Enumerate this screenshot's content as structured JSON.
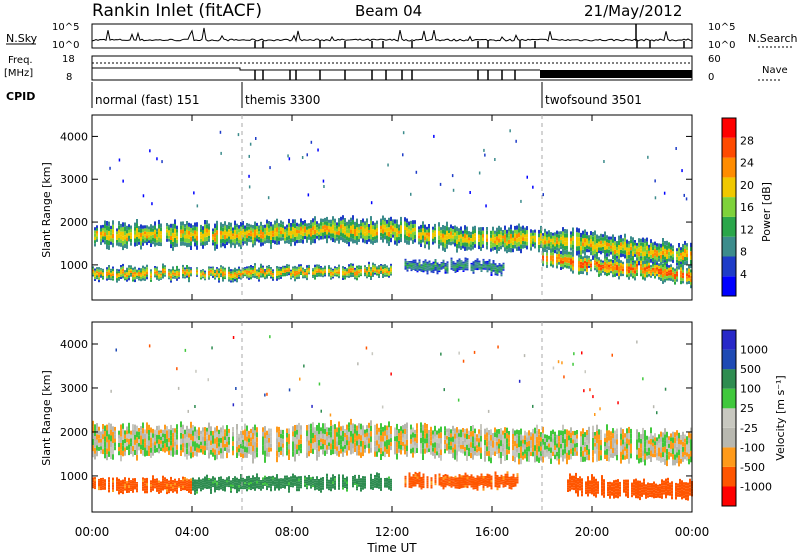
{
  "header": {
    "title": "Rankin Inlet (fitACF)",
    "beam": "Beam 04",
    "date": "21/May/2012"
  },
  "panel_labels": {
    "nsky": "N.Sky",
    "nsky_ticks": [
      "10^5",
      "10^0"
    ],
    "nsearch": "N.Search",
    "freq": "Freq.",
    "freq_unit": "[MHz]",
    "freq_ticks": [
      "18",
      "8"
    ],
    "nave": "Nave",
    "nave_ticks": [
      "60",
      "0"
    ],
    "cpid": "CPID"
  },
  "cpid_modes": [
    {
      "name": "normal (fast) 151",
      "start_hour": 0
    },
    {
      "name": "themis 3300",
      "start_hour": 6
    },
    {
      "name": "twofsound 3501",
      "start_hour": 18
    }
  ],
  "colors": {
    "power": [
      "#0000ff",
      "#1e3cc8",
      "#3c8c8c",
      "#2aa64a",
      "#7ed23a",
      "#f0c800",
      "#ff8c00",
      "#ff4a00",
      "#ff0000"
    ],
    "velocity": [
      "#ff0000",
      "#ff5500",
      "#ff9a1a",
      "#b8b8b0",
      "#c8c8c0",
      "#40c83c",
      "#2e8c50",
      "#1e4ab4",
      "#2828c8"
    ]
  },
  "chart_data": [
    {
      "type": "heatmap",
      "name": "power",
      "ylabel": "Slant Range [km]",
      "xlabel": "Time UT",
      "x_ticks": [
        "00:00",
        "04:00",
        "08:00",
        "12:00",
        "16:00",
        "20:00",
        "00:00"
      ],
      "xlim_hours": [
        0,
        24
      ],
      "ylim_km": [
        180,
        4500
      ],
      "y_ticks": [
        "4000",
        "3000",
        "2000",
        "1000"
      ],
      "colorbar_label": "Power [dB]",
      "colorbar_ticks": [
        "28",
        "24",
        "20",
        "16",
        "12",
        "8",
        "4"
      ],
      "colorbar_range": [
        0,
        30
      ],
      "bands": [
        {
          "start_hour": 0.0,
          "end_hour": 24.0,
          "center_km": [
            1700,
            1700,
            1700,
            1800,
            1800,
            1600,
            1600,
            1400,
            1200
          ],
          "width_km": 550,
          "peak_db": 22
        },
        {
          "start_hour": 0.0,
          "end_hour": 12.0,
          "center_km": [
            800,
            800,
            800,
            850,
            850
          ],
          "width_km": 300,
          "peak_db": 24
        },
        {
          "start_hour": 12.5,
          "end_hour": 16.5,
          "center_km": [
            1000,
            950,
            1000,
            900
          ],
          "width_km": 250,
          "peak_db": 12
        },
        {
          "start_hour": 18.0,
          "end_hour": 24.0,
          "center_km": [
            1200,
            1000,
            900,
            700
          ],
          "width_km": 400,
          "peak_db": 28
        }
      ]
    },
    {
      "type": "heatmap",
      "name": "velocity",
      "ylabel": "Slant Range [km]",
      "xlabel": "Time UT",
      "x_ticks": [
        "00:00",
        "04:00",
        "08:00",
        "12:00",
        "16:00",
        "20:00",
        "00:00"
      ],
      "xlim_hours": [
        0,
        24
      ],
      "ylim_km": [
        180,
        4500
      ],
      "y_ticks": [
        "4000",
        "3000",
        "2000",
        "1000"
      ],
      "colorbar_label": "Velocity [m s⁻¹]",
      "colorbar_ticks": [
        "1000",
        "500",
        "100",
        "25",
        "-25",
        "-100",
        "-500",
        "-1000"
      ],
      "colorbar_range": [
        -1000,
        1000
      ],
      "bands": [
        {
          "start_hour": 0.0,
          "end_hour": 24.0,
          "center_km": [
            1800,
            1800,
            1750,
            1850,
            1800,
            1700,
            1700,
            1650
          ],
          "width_km": 700,
          "velocity": 0
        },
        {
          "start_hour": 0.0,
          "end_hour": 4.0,
          "center_km": [
            800,
            800
          ],
          "width_km": 300,
          "velocity": -150
        },
        {
          "start_hour": 4.0,
          "end_hour": 12.0,
          "center_km": [
            800,
            850,
            850
          ],
          "width_km": 300,
          "velocity": 150
        },
        {
          "start_hour": 12.5,
          "end_hour": 17.0,
          "center_km": [
            900,
            850,
            900
          ],
          "width_km": 300,
          "velocity": -150
        },
        {
          "start_hour": 19.0,
          "end_hour": 24.0,
          "center_km": [
            800,
            700,
            700
          ],
          "width_km": 400,
          "velocity": -250
        }
      ]
    }
  ]
}
